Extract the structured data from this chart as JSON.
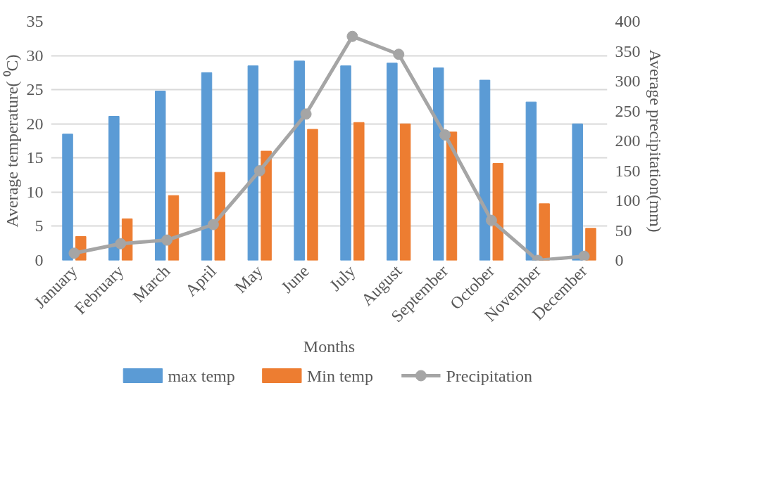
{
  "chart_data": {
    "type": "bar",
    "xlabel": "Months",
    "ylabel": "Average temperature( ⁰C)",
    "y2label": "Average precipitation(mm)",
    "categories": [
      "January",
      "February",
      "March",
      "April",
      "May",
      "June",
      "July",
      "August",
      "September",
      "October",
      "November",
      "December"
    ],
    "series": [
      {
        "name": "max temp",
        "color": "#5b9bd5",
        "values": [
          18.5,
          21.1,
          24.8,
          27.5,
          28.5,
          29.2,
          28.5,
          28.9,
          28.2,
          26.4,
          23.2,
          20.0
        ]
      },
      {
        "name": "Min temp",
        "color": "#ed7d31",
        "values": [
          3.5,
          6.1,
          9.5,
          12.9,
          16.0,
          19.2,
          20.2,
          20.0,
          18.8,
          14.2,
          8.3,
          4.7
        ]
      },
      {
        "name": "Precipitation",
        "color": "#a5a5a5",
        "type": "line",
        "axis": "y2",
        "marker": "circle",
        "values": [
          12,
          28,
          34,
          60,
          150,
          245,
          375,
          345,
          210,
          67,
          0,
          7
        ]
      }
    ],
    "ylim": [
      0,
      35
    ],
    "yticks": [
      0,
      5,
      10,
      15,
      20,
      25,
      30,
      35
    ],
    "y2lim": [
      0,
      400
    ],
    "y2ticks": [
      0,
      50,
      100,
      150,
      200,
      250,
      300,
      350,
      400
    ],
    "grid": "y",
    "legend": "bottom"
  }
}
